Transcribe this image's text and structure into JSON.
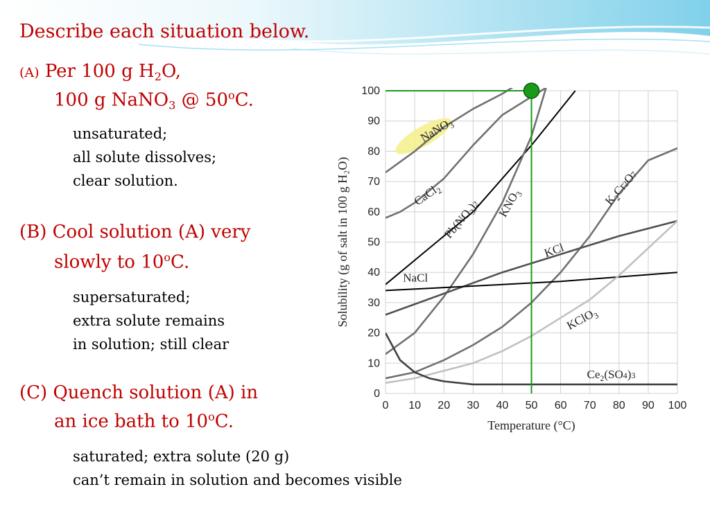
{
  "slide": {
    "title": "Describe each situation below.",
    "a": {
      "marker": "(A)",
      "line1_pre": "Per 100 g H",
      "line1_sub": "2",
      "line1_post": "O,",
      "line2_pre": "100 g NaNO",
      "line2_sub": "3",
      "line2_mid": " @ 50",
      "line2_sup": "o",
      "line2_post": "C.",
      "answer": [
        "unsaturated;",
        "all solute dissolves;",
        "clear solution."
      ]
    },
    "b": {
      "line1": "(B) Cool solution (A) very",
      "line2_pre": "slowly to 10",
      "line2_sup": "o",
      "line2_post": "C.",
      "answer": [
        "supersaturated;",
        "extra solute remains",
        "in solution; still clear"
      ]
    },
    "c": {
      "line1": "(C) Quench solution (A) in",
      "line2_pre": "an ice bath to 10",
      "line2_sup": "o",
      "line2_post": "C.",
      "answer": [
        "saturated; extra solute (20 g)",
        "can’t remain in solution and becomes visible"
      ]
    },
    "colors": {
      "heading": "#c00000",
      "body": "#000000",
      "accent_wave": "#5bc8e8"
    }
  },
  "chart_data": {
    "type": "line",
    "xlabel": "Temperature (°C)",
    "ylabel": "Solubility (g of salt in 100 g H₂O)",
    "xlim": [
      0,
      100
    ],
    "ylim": [
      0,
      100
    ],
    "xticks": [
      0,
      10,
      20,
      30,
      40,
      50,
      60,
      70,
      80,
      90,
      100
    ],
    "yticks": [
      0,
      10,
      20,
      30,
      40,
      50,
      60,
      70,
      80,
      90,
      100
    ],
    "grid": true,
    "series": [
      {
        "name": "NaNO3",
        "label_parts": [
          "NaNO",
          "3",
          ""
        ],
        "color": "#707070",
        "x": [
          0,
          10,
          20,
          30,
          40,
          45
        ],
        "y": [
          73,
          80,
          88,
          94,
          99,
          102
        ]
      },
      {
        "name": "CaCl2",
        "label_parts": [
          "CaCl",
          "2",
          ""
        ],
        "color": "#707070",
        "x": [
          0,
          5,
          10,
          20,
          30,
          40,
          50,
          55
        ],
        "y": [
          58,
          60,
          63,
          71,
          82,
          92,
          98,
          101
        ]
      },
      {
        "name": "Pb(NO3)2",
        "label_parts": [
          "Pb(NO",
          "3",
          ")2"
        ],
        "color": "#000000",
        "x": [
          0,
          30,
          50,
          65
        ],
        "y": [
          36,
          60,
          82,
          100
        ]
      },
      {
        "name": "KNO3",
        "label_parts": [
          "KNO",
          "3",
          ""
        ],
        "color": "#707070",
        "x": [
          0,
          10,
          20,
          30,
          40,
          50,
          55
        ],
        "y": [
          13,
          20,
          32,
          46,
          63,
          85,
          101
        ]
      },
      {
        "name": "K2Cr2O7",
        "label_parts": [
          "K",
          "2",
          "Cr2O7"
        ],
        "color": "#707070",
        "x": [
          0,
          10,
          20,
          30,
          40,
          50,
          60,
          70,
          80,
          90,
          100
        ],
        "y": [
          5,
          7,
          11,
          16,
          22,
          30,
          40,
          52,
          66,
          77,
          81
        ]
      },
      {
        "name": "KCl",
        "label_parts": [
          "KCl",
          "",
          ""
        ],
        "color": "#505050",
        "x": [
          0,
          20,
          40,
          60,
          80,
          100
        ],
        "y": [
          26,
          33,
          40,
          46,
          52,
          57
        ]
      },
      {
        "name": "NaCl",
        "label_parts": [
          "NaCl",
          "",
          ""
        ],
        "color": "#000000",
        "x": [
          0,
          20,
          40,
          60,
          80,
          100
        ],
        "y": [
          34,
          35,
          36,
          37,
          38.5,
          40
        ]
      },
      {
        "name": "KClO3",
        "label_parts": [
          "KClO",
          "3",
          ""
        ],
        "color": "#c0c0c0",
        "x": [
          0,
          10,
          20,
          30,
          40,
          50,
          60,
          70,
          80,
          90,
          100
        ],
        "y": [
          3.5,
          5,
          7.5,
          10,
          14,
          19,
          25,
          31,
          39,
          48,
          57
        ]
      },
      {
        "name": "Ce2(SO4)3",
        "label_parts": [
          "Ce",
          "2",
          "(SO4)3"
        ],
        "color": "#404040",
        "x": [
          0,
          5,
          10,
          15,
          20,
          30,
          40,
          50,
          100
        ],
        "y": [
          20,
          11,
          7,
          5,
          4,
          3,
          3,
          3,
          3
        ]
      }
    ],
    "labels": {
      "NaNO3": "NaNO3",
      "CaCl2": "CaCl2",
      "Pb(NO3)2": "Pb(NO3)2",
      "KNO3": "KNO3",
      "K2Cr2O7": "K2Cr2O7",
      "KCl": "KCl",
      "NaCl": "NaCl",
      "KClO3": "KClO3",
      "Ce2(SO4)3": "Ce2(SO4)3"
    },
    "highlight": {
      "series": "NaNO3",
      "color": "#f5f08a"
    },
    "annotation": {
      "x": 50,
      "y": 100,
      "guide_color": "#1a9a1a",
      "point_color": "#1a9a1a"
    }
  }
}
